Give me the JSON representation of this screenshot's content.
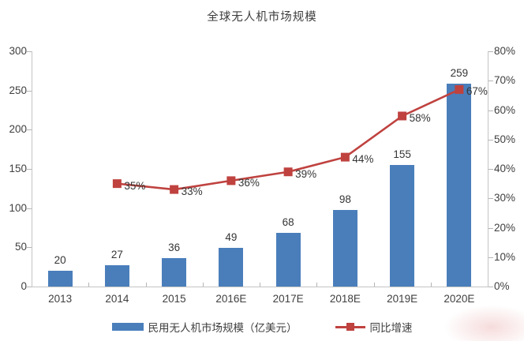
{
  "title": "全球无人机市场规模",
  "chart_data": {
    "type": "bar",
    "subtype": "bar-line-combo",
    "categories": [
      "2013",
      "2014",
      "2015",
      "2016E",
      "2017E",
      "2018E",
      "2019E",
      "2020E"
    ],
    "series": [
      {
        "name": "民用无人机市场规模（亿美元）",
        "type": "bar",
        "axis": "left",
        "color": "#4a7ebb",
        "values": [
          20,
          27,
          36,
          49,
          68,
          98,
          155,
          259
        ],
        "labels": [
          "20",
          "27",
          "36",
          "49",
          "68",
          "98",
          "155",
          "259"
        ]
      },
      {
        "name": "同比增速",
        "type": "line",
        "axis": "right",
        "color": "#bf423f",
        "values": [
          null,
          35,
          33,
          36,
          39,
          44,
          58,
          67
        ],
        "labels": [
          null,
          "35%",
          "33%",
          "36%",
          "39%",
          "44%",
          "58%",
          "67%"
        ]
      }
    ],
    "left_axis": {
      "min": 0,
      "max": 300,
      "step": 50,
      "tick_labels": [
        "300",
        "250",
        "200",
        "150",
        "100",
        "50",
        "0"
      ]
    },
    "right_axis": {
      "min": 0,
      "max": 80,
      "step": 10,
      "tick_labels": [
        "80%",
        "70%",
        "60%",
        "50%",
        "40%",
        "30%",
        "20%",
        "10%",
        "0%"
      ]
    },
    "grid": false,
    "legend_position": "bottom",
    "legend": {
      "items": [
        {
          "label": "民用无人机市场规模（亿美元）",
          "marker": "bar-swatch",
          "color": "#4a7ebb"
        },
        {
          "label": "同比增速",
          "marker": "line-square",
          "color": "#bf423f"
        }
      ]
    }
  },
  "colors": {
    "bar": "#4a7ebb",
    "line": "#bf423f",
    "axis": "#c4c4c4",
    "text": "#3f3f3f"
  }
}
